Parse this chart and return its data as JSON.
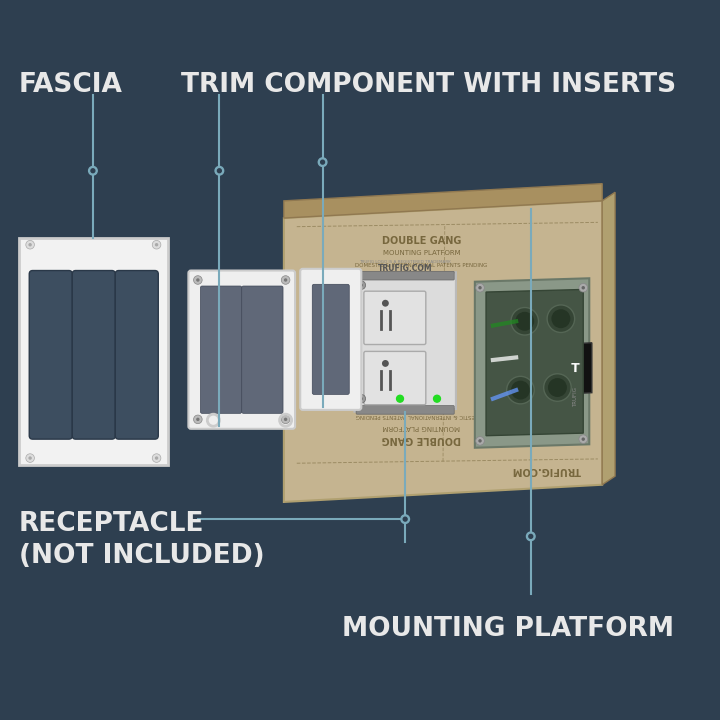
{
  "bg_color": "#2e3f50",
  "label_color": "#e8e8e8",
  "line_color": "#7aaabb",
  "dot_color": "#7aaabb",
  "fascia_label": "FASCIA",
  "trim_label": "TRIM COMPONENT WITH INSERTS",
  "receptacle_label": "RECEPTACLE\n(NOT INCLUDED)",
  "platform_label": "MOUNTING PLATFORM",
  "label_fontsize": 19,
  "label_fontweight": "bold",
  "fig_width": 7.2,
  "fig_height": 7.2,
  "dpi": 100,
  "board_face_color": "#c5b490",
  "board_edge_color": "#b0a070",
  "board_bottom_color": "#a89060",
  "board_right_color": "#b0a070",
  "jbox_face_color": "#8a9888",
  "jbox_inner_color": "#455545",
  "fascia_face_color": "#f2f2f2",
  "fascia_edge_color": "#cccccc",
  "trim_face_color": "#efefef",
  "trim_edge_color": "#cccccc",
  "rec_face_color": "#dcdcdc",
  "rec_edge_color": "#bbbbbb"
}
